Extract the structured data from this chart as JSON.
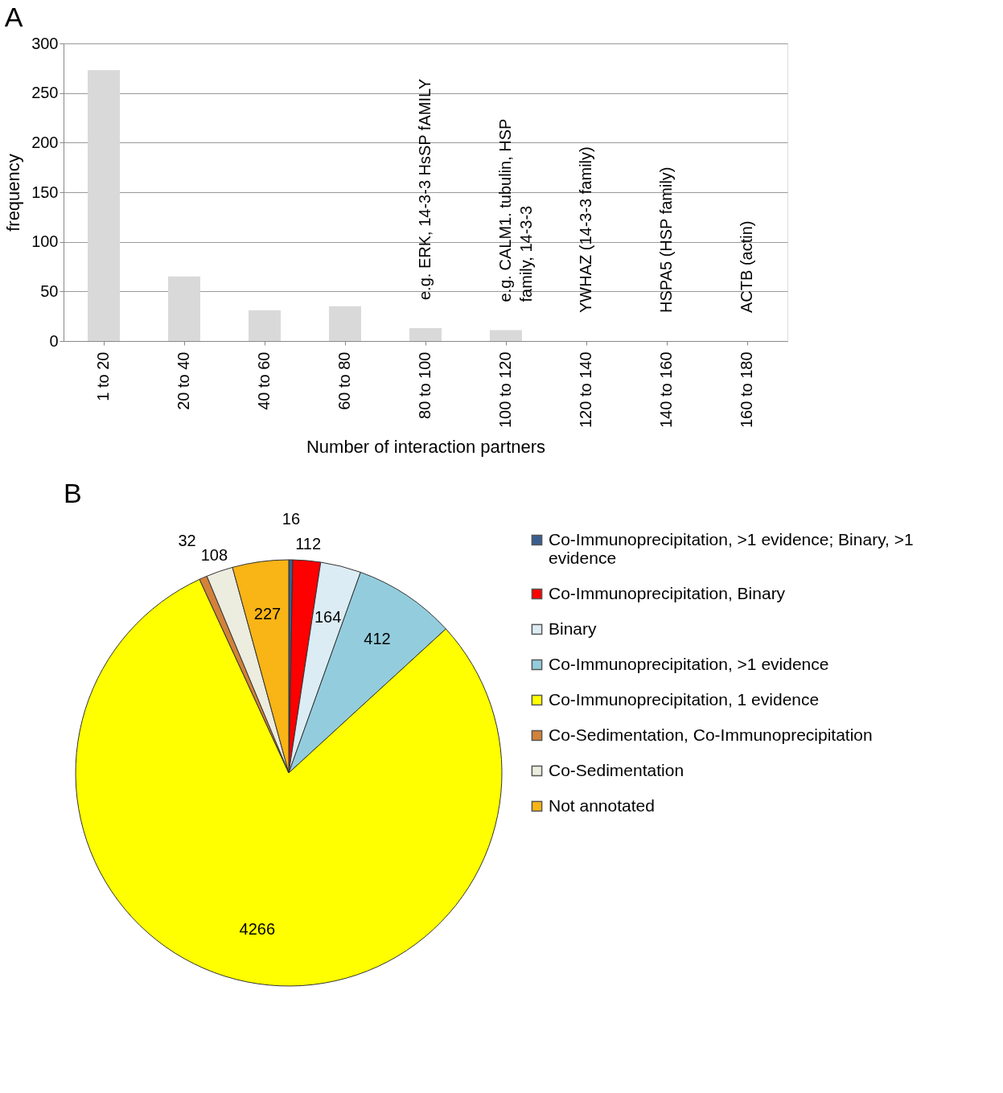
{
  "chart_data": [
    {
      "type": "bar",
      "title": "A",
      "xlabel": "Number of interaction partners",
      "ylabel": "frequency",
      "categories": [
        "1 to 20",
        "20 to 40",
        "40 to 60",
        "60 to 80",
        "80 to 100",
        "100 to 120",
        "120 to 140",
        "140 to 160",
        "160 to 180"
      ],
      "values": [
        273,
        65,
        31,
        35,
        13,
        11,
        0,
        0,
        0
      ],
      "color": "#d9d9d9",
      "ylim": [
        0,
        300
      ],
      "yticks": [
        0,
        50,
        100,
        150,
        200,
        250,
        300
      ],
      "grid": "y",
      "annotations": [
        {
          "text": "e.g. ERK, 14-3-3 HsSP fAMILY",
          "x": "80 to 100",
          "y": 13
        },
        {
          "text": "e.g. CALM1. tubulin, HSP\nfamily, 14-3-3",
          "x": "100 to 120",
          "y": 11
        },
        {
          "text": "YWHAZ (14-3-3 family)",
          "x": "120 to 140",
          "y": 0
        },
        {
          "text": "HSPA5 (HSP family)",
          "x": "140 to 160",
          "y": 0
        },
        {
          "text": "ACTB (actin)",
          "x": "160 to 180",
          "y": 0
        }
      ]
    },
    {
      "type": "pie",
      "title": "B",
      "categories": [
        "Co-Immunoprecipitation, >1 evidence; Binary, >1 evidence",
        "Co-Immunoprecipitation, Binary",
        "Binary",
        "Co-Immunoprecipitation, >1 evidence",
        "Co-Immunoprecipitation, 1 evidence",
        "Co-Sedimentation, Co-Immunoprecipitation",
        "Co-Sedimentation",
        "Not annotated"
      ],
      "values": [
        16,
        112,
        164,
        412,
        4266,
        32,
        108,
        227
      ],
      "colors": [
        "#3a5f8f",
        "#ff0000",
        "#dcecf4",
        "#93cddd",
        "#ffff00",
        "#d2823a",
        "#ececdf",
        "#f9b416"
      ],
      "data_labels": true,
      "legend": "right"
    }
  ]
}
